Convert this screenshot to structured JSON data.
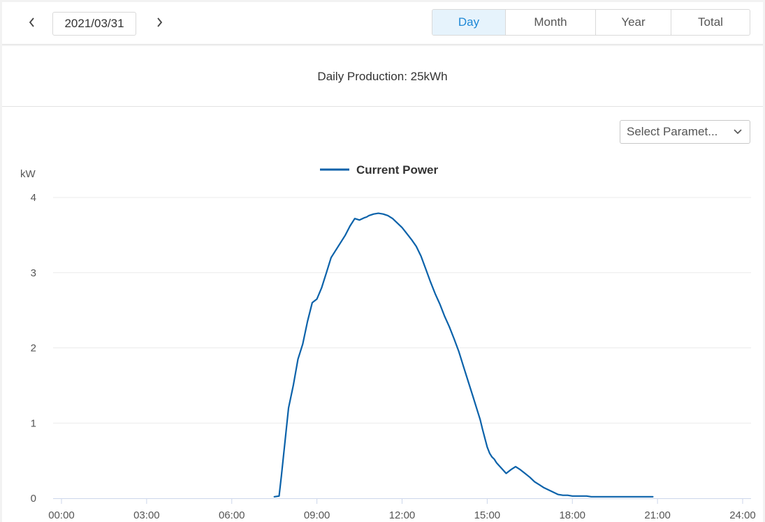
{
  "date_nav": {
    "date": "2021/03/31"
  },
  "tabs": [
    {
      "label": "Day",
      "active": true
    },
    {
      "label": "Month",
      "active": false
    },
    {
      "label": "Year",
      "active": false
    },
    {
      "label": "Total",
      "active": false
    }
  ],
  "summary": {
    "text": "Daily Production: 25kWh"
  },
  "parameter_select": {
    "label": "Select Paramet..."
  },
  "colors": {
    "accent": "#1e88d6",
    "series": "#0b62aa",
    "grid": "#ebebeb"
  },
  "chart_data": {
    "type": "line",
    "ylabel": "kW",
    "ylim": [
      0,
      4
    ],
    "yticks": [
      "0",
      "1",
      "2",
      "3",
      "4"
    ],
    "xlim": [
      "00:00",
      "24:00"
    ],
    "xticks": [
      "00:00",
      "03:00",
      "06:00",
      "09:00",
      "12:00",
      "15:00",
      "18:00",
      "21:00",
      "24:00"
    ],
    "grid": true,
    "legend_position": "top-center",
    "series": [
      {
        "name": "Current Power",
        "x": [
          "07:30",
          "07:40",
          "07:45",
          "07:50",
          "07:55",
          "08:00",
          "08:05",
          "08:10",
          "08:20",
          "08:30",
          "08:40",
          "08:50",
          "09:00",
          "09:10",
          "09:15",
          "09:20",
          "09:30",
          "09:40",
          "09:50",
          "10:00",
          "10:10",
          "10:20",
          "10:30",
          "10:40",
          "10:45",
          "10:50",
          "11:00",
          "11:10",
          "11:20",
          "11:30",
          "11:40",
          "11:50",
          "12:00",
          "12:10",
          "12:20",
          "12:30",
          "12:40",
          "12:50",
          "13:00",
          "13:10",
          "13:20",
          "13:30",
          "13:40",
          "13:50",
          "14:00",
          "14:10",
          "14:20",
          "14:30",
          "14:40",
          "14:45",
          "14:50",
          "14:55",
          "15:00",
          "15:05",
          "15:10",
          "15:15",
          "15:20",
          "15:30",
          "15:40",
          "15:50",
          "16:00",
          "16:10",
          "16:20",
          "16:30",
          "16:40",
          "16:50",
          "17:00",
          "17:10",
          "17:20",
          "17:30",
          "17:40",
          "17:50",
          "18:00",
          "18:10",
          "18:20",
          "18:30",
          "18:40",
          "18:50",
          "19:00",
          "19:10",
          "19:20",
          "19:30",
          "19:40",
          "19:50",
          "20:00",
          "20:10",
          "20:20",
          "20:30",
          "20:40",
          "20:50"
        ],
        "values": [
          0.02,
          0.03,
          0.3,
          0.6,
          0.9,
          1.2,
          1.35,
          1.5,
          1.85,
          2.05,
          2.35,
          2.6,
          2.65,
          2.8,
          2.9,
          3.0,
          3.2,
          3.3,
          3.4,
          3.5,
          3.62,
          3.72,
          3.7,
          3.73,
          3.74,
          3.76,
          3.78,
          3.79,
          3.78,
          3.76,
          3.72,
          3.66,
          3.6,
          3.52,
          3.44,
          3.35,
          3.22,
          3.05,
          2.88,
          2.72,
          2.58,
          2.42,
          2.28,
          2.12,
          1.95,
          1.75,
          1.55,
          1.35,
          1.15,
          1.05,
          0.92,
          0.8,
          0.68,
          0.6,
          0.55,
          0.52,
          0.47,
          0.4,
          0.33,
          0.38,
          0.42,
          0.38,
          0.33,
          0.28,
          0.22,
          0.18,
          0.14,
          0.11,
          0.08,
          0.05,
          0.04,
          0.04,
          0.03,
          0.03,
          0.03,
          0.03,
          0.02,
          0.02,
          0.02,
          0.02,
          0.02,
          0.02,
          0.02,
          0.02,
          0.02,
          0.02,
          0.02,
          0.02,
          0.02,
          0.02
        ]
      }
    ]
  }
}
